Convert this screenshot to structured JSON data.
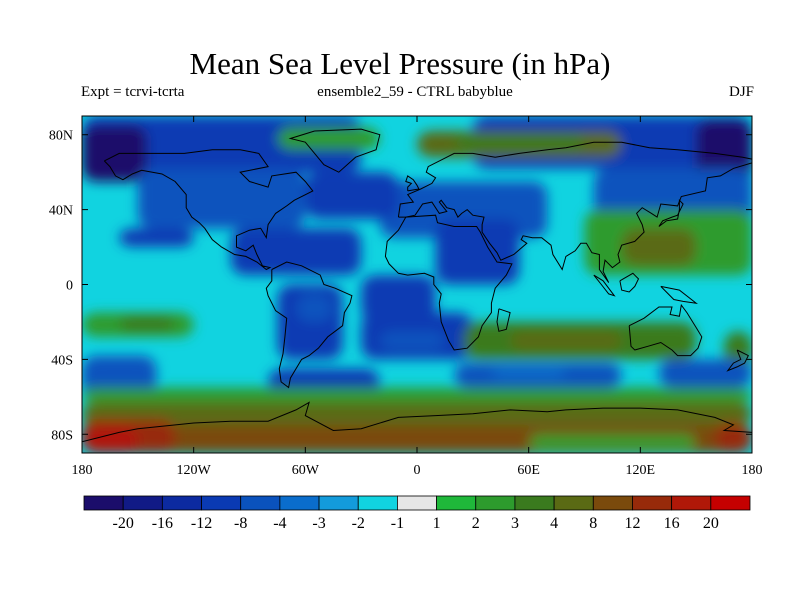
{
  "title": "Mean Sea Level Pressure (in hPa)",
  "subtitle_left": "Expt = tcrvi-tcrta",
  "subtitle_center": "ensemble2_59 - CTRL babyblue",
  "subtitle_right": "DJF",
  "axes": {
    "lon_ticks": [
      {
        "value": -180,
        "label": "180"
      },
      {
        "value": -120,
        "label": "120W"
      },
      {
        "value": -60,
        "label": "60W"
      },
      {
        "value": 0,
        "label": "0"
      },
      {
        "value": 60,
        "label": "60E"
      },
      {
        "value": 120,
        "label": "120E"
      },
      {
        "value": 180,
        "label": "180"
      }
    ],
    "lat_ticks": [
      {
        "value": 80,
        "label": "80N"
      },
      {
        "value": 40,
        "label": "40N"
      },
      {
        "value": 0,
        "label": "0"
      },
      {
        "value": -40,
        "label": "40S"
      },
      {
        "value": -80,
        "label": "80S"
      }
    ],
    "lon_range": [
      -180,
      180
    ],
    "lat_range": [
      -90,
      90
    ]
  },
  "colorbar": {
    "levels": [
      "-20",
      "-16",
      "-12",
      "-8",
      "-4",
      "-3",
      "-2",
      "-1",
      "1",
      "2",
      "3",
      "4",
      "8",
      "12",
      "16",
      "20"
    ],
    "colors": [
      "#1b0d6b",
      "#111a86",
      "#0c2aa0",
      "#0a3ab3",
      "#0a52bd",
      "#0a6dcc",
      "#139bdb",
      "#11d3e0",
      "#e6e6e6",
      "#1fb83a",
      "#2d9b2d",
      "#3a7a1e",
      "#5a6a14",
      "#7a4a0c",
      "#972a0a",
      "#b01808",
      "#c50000"
    ]
  },
  "field_regions": [
    {
      "level": 3,
      "lon": [
        -180,
        -30
      ],
      "lat": [
        60,
        90
      ]
    },
    {
      "level": 3,
      "lon": [
        30,
        180
      ],
      "lat": [
        62,
        90
      ]
    },
    {
      "level": 0,
      "lon": [
        150,
        180
      ],
      "lat": [
        55,
        88
      ]
    },
    {
      "level": 0,
      "lon": [
        -180,
        -145
      ],
      "lat": [
        55,
        85
      ]
    },
    {
      "level": 4,
      "lon": [
        -150,
        -60
      ],
      "lat": [
        30,
        62
      ]
    },
    {
      "level": 4,
      "lon": [
        -20,
        70
      ],
      "lat": [
        25,
        55
      ]
    },
    {
      "level": 4,
      "lon": [
        95,
        180
      ],
      "lat": [
        30,
        62
      ]
    },
    {
      "level": 3,
      "lon": [
        -60,
        -10
      ],
      "lat": [
        35,
        60
      ]
    },
    {
      "level": 10,
      "lon": [
        -75,
        -20
      ],
      "lat": [
        72,
        84
      ]
    },
    {
      "level": 12,
      "lon": [
        0,
        110
      ],
      "lat": [
        68,
        82
      ]
    },
    {
      "level": 11,
      "lon": [
        20,
        90
      ],
      "lat": [
        72,
        80
      ]
    },
    {
      "level": 3,
      "lon": [
        -100,
        -30
      ],
      "lat": [
        5,
        30
      ]
    },
    {
      "level": 3,
      "lon": [
        -30,
        10
      ],
      "lat": [
        -20,
        5
      ]
    },
    {
      "level": 3,
      "lon": [
        -75,
        -40
      ],
      "lat": [
        -40,
        0
      ]
    },
    {
      "level": 4,
      "lon": [
        -65,
        -45
      ],
      "lat": [
        -20,
        -5
      ]
    },
    {
      "level": 3,
      "lon": [
        -30,
        30
      ],
      "lat": [
        -40,
        -15
      ]
    },
    {
      "level": 4,
      "lon": [
        -20,
        15
      ],
      "lat": [
        -35,
        -25
      ]
    },
    {
      "level": 3,
      "lon": [
        10,
        55
      ],
      "lat": [
        0,
        35
      ]
    },
    {
      "level": 3,
      "lon": [
        -160,
        -120
      ],
      "lat": [
        20,
        30
      ]
    },
    {
      "level": 10,
      "lon": [
        -180,
        -120
      ],
      "lat": [
        -28,
        -15
      ]
    },
    {
      "level": 11,
      "lon": [
        -160,
        -130
      ],
      "lat": [
        -25,
        -17
      ]
    },
    {
      "level": 11,
      "lon": [
        25,
        150
      ],
      "lat": [
        -40,
        -20
      ]
    },
    {
      "level": 12,
      "lon": [
        50,
        110
      ],
      "lat": [
        -35,
        -25
      ]
    },
    {
      "level": 10,
      "lon": [
        90,
        180
      ],
      "lat": [
        5,
        40
      ]
    },
    {
      "level": 12,
      "lon": [
        110,
        150
      ],
      "lat": [
        10,
        30
      ]
    },
    {
      "level": 11,
      "lon": [
        165,
        180
      ],
      "lat": [
        -45,
        -25
      ]
    },
    {
      "level": 4,
      "lon": [
        -180,
        -140
      ],
      "lat": [
        -60,
        -38
      ]
    },
    {
      "level": 3,
      "lon": [
        -80,
        -20
      ],
      "lat": [
        -60,
        -45
      ]
    },
    {
      "level": 4,
      "lon": [
        20,
        110
      ],
      "lat": [
        -55,
        -42
      ]
    },
    {
      "level": 5,
      "lon": [
        40,
        80
      ],
      "lat": [
        -50,
        -45
      ]
    },
    {
      "level": 4,
      "lon": [
        130,
        180
      ],
      "lat": [
        -55,
        -40
      ]
    },
    {
      "level": 10,
      "lon": [
        -180,
        180
      ],
      "lat": [
        -63,
        -55
      ]
    },
    {
      "level": 12,
      "lon": [
        -180,
        180
      ],
      "lat": [
        -75,
        -63
      ]
    },
    {
      "level": 13,
      "lon": [
        -180,
        180
      ],
      "lat": [
        -90,
        -75
      ]
    },
    {
      "level": 14,
      "lon": [
        -180,
        -130
      ],
      "lat": [
        -90,
        -72
      ]
    },
    {
      "level": 15,
      "lon": [
        -180,
        -150
      ],
      "lat": [
        -90,
        -76
      ]
    },
    {
      "level": 10,
      "lon": [
        60,
        150
      ],
      "lat": [
        -88,
        -80
      ]
    },
    {
      "level": 14,
      "lon": [
        160,
        180
      ],
      "lat": [
        -90,
        -74
      ]
    }
  ]
}
